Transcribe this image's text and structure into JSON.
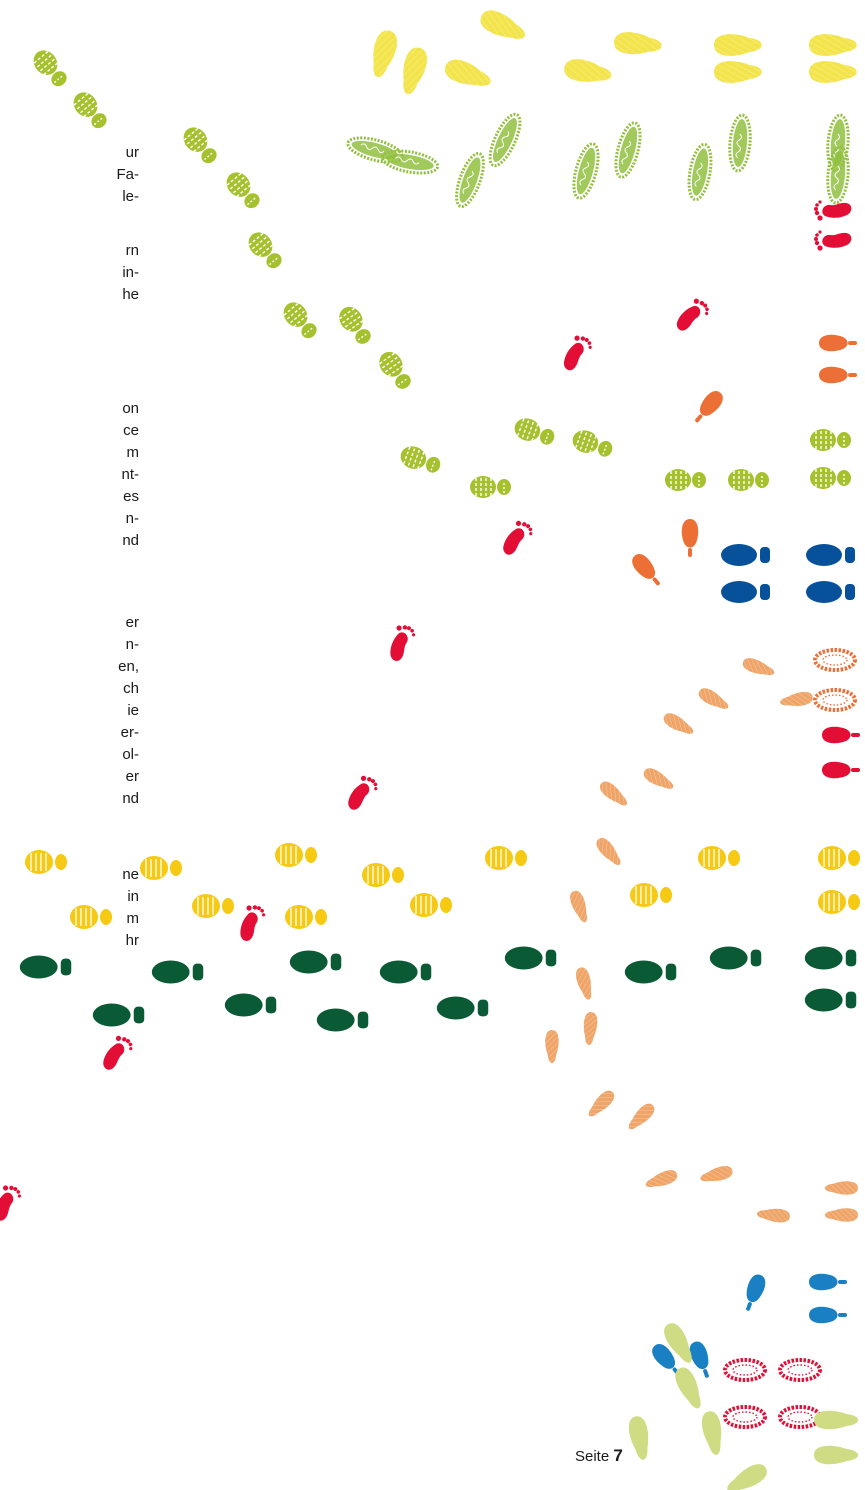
{
  "text_fragments": [
    [
      "ur",
      "Fa-",
      "le-"
    ],
    [
      "rn",
      "in-",
      "he"
    ],
    [
      "on",
      "ce",
      "m",
      "nt-",
      "es",
      "n-",
      "nd"
    ],
    [
      "er",
      "n-",
      "en,",
      "ch",
      "ie",
      "er-",
      "ol-",
      "er",
      "nd"
    ],
    [
      "ne",
      "in",
      "m",
      "hr"
    ]
  ],
  "footer": {
    "label": "Seite",
    "number": "7"
  },
  "colors": {
    "lime": "#a5c12d",
    "yellow": "#f2e44a",
    "gold": "#f6c913",
    "red": "#e20e36",
    "orange": "#ec6f35",
    "peach": "#efa468",
    "dark_green": "#0b5a36",
    "navy": "#07509a",
    "blue": "#1a80c4",
    "pale_green": "#cfdc84",
    "green_fuzzy": "#91bf3e"
  },
  "icons": [
    "footprint-icon",
    "barefoot-icon",
    "shoe-sole-icon",
    "heel-icon",
    "sneaker-icon",
    "fuzzy-slipper-icon"
  ]
}
